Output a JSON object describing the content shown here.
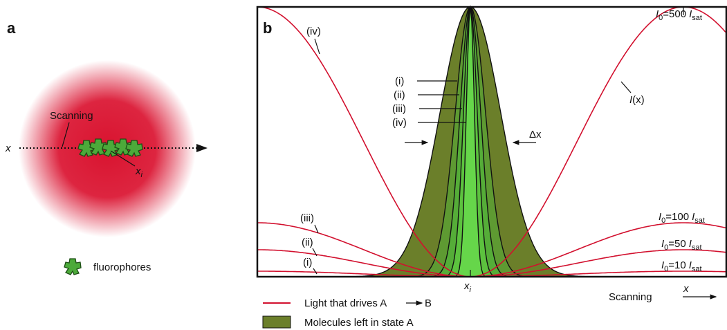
{
  "panel_a": {
    "label": "a",
    "scanning": "Scanning",
    "axis": "x",
    "position": {
      "base": "x",
      "sub": "i"
    },
    "legend": "fluorophores"
  },
  "panel_b": {
    "label": "b",
    "curve_labels": [
      "(i)",
      "(ii)",
      "(iii)",
      "(iv)"
    ],
    "intensities": [
      {
        "i": "I",
        "i_sub": "0",
        "eq": "=10",
        "is": "I",
        "is_sub": "sat"
      },
      {
        "i": "I",
        "i_sub": "0",
        "eq": "=50",
        "is": "I",
        "is_sub": "sat"
      },
      {
        "i": "I",
        "i_sub": "0",
        "eq": "=100",
        "is": "I",
        "is_sub": "sat"
      },
      {
        "i": "I",
        "i_sub": "0",
        "eq": "=500",
        "is": "I",
        "is_sub": "sat"
      }
    ],
    "intensity_function": {
      "symbol": "I",
      "arg": "(x)"
    },
    "delta": "Δx",
    "position": {
      "base": "x",
      "sub": "i"
    },
    "scanning": "Scanning",
    "axis": "x",
    "legend": {
      "light": {
        "text": "Light that drives A",
        "target": "B"
      },
      "molecules": "Molecules left in state A"
    }
  }
}
